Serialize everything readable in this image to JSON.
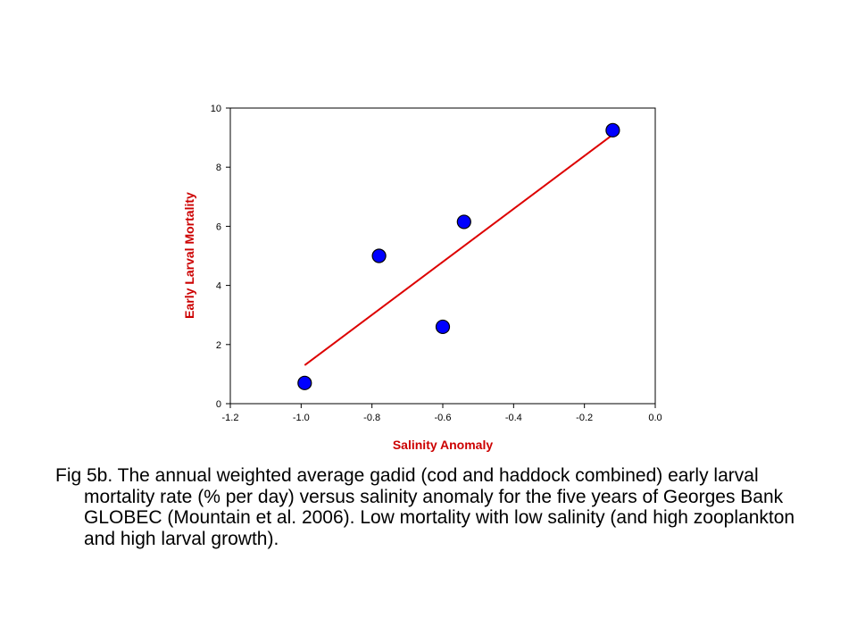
{
  "chart_data": {
    "type": "scatter",
    "xlabel": "Salinity Anomaly",
    "ylabel": "Early Larval Mortality",
    "xlim": [
      -1.2,
      0.0
    ],
    "ylim": [
      0,
      10
    ],
    "xticks": [
      "-1.2",
      "-1.0",
      "-0.8",
      "-0.6",
      "-0.4",
      "-0.2",
      "0.0"
    ],
    "xtick_values": [
      -1.2,
      -1.0,
      -0.8,
      -0.6,
      -0.4,
      -0.2,
      0.0
    ],
    "yticks": [
      "0",
      "2",
      "4",
      "6",
      "8",
      "10"
    ],
    "ytick_values": [
      0,
      2,
      4,
      6,
      8,
      10
    ],
    "grid": false,
    "points": [
      {
        "x": -0.99,
        "y": 0.7
      },
      {
        "x": -0.78,
        "y": 5.0
      },
      {
        "x": -0.6,
        "y": 2.6
      },
      {
        "x": -0.54,
        "y": 6.15
      },
      {
        "x": -0.12,
        "y": 9.25
      }
    ],
    "fit_line": {
      "x": [
        -0.99,
        -0.12
      ],
      "y": [
        1.3,
        9.1
      ]
    },
    "colors": {
      "points": "#0000ff",
      "point_outline": "#000000",
      "fit_line": "#dd0000",
      "axis_titles": "#cc0000"
    }
  },
  "caption": {
    "lines": [
      "Fig 5b.  The annual weighted average gadid (cod and haddock combined) early larval mortality rate (% per day) versus salinity anomaly for the five years of Georges Bank GLOBEC (Mountain et al. 2006).  Low mortality with low salinity (and high zooplankton and high larval growth)."
    ]
  }
}
